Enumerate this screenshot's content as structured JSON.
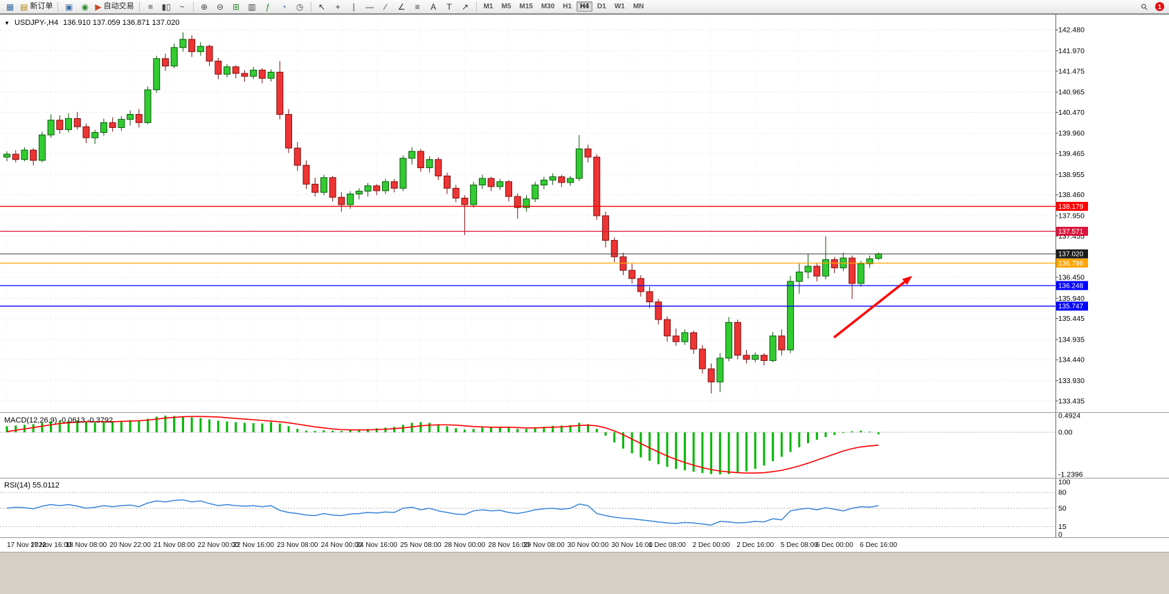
{
  "icons": {
    "collapse": "▼",
    "search": "⚲"
  },
  "toolbar": {
    "notification_count": "1",
    "items": [
      {
        "type": "icon",
        "name": "new-chart-icon",
        "glyph": "▦",
        "color": "#3b6ea5"
      },
      {
        "type": "button",
        "name": "new-order-button",
        "label": "新订单",
        "glyph": "▤",
        "color": "#b8860b"
      },
      {
        "type": "sep"
      },
      {
        "type": "icon",
        "name": "profiles-icon",
        "glyph": "▣",
        "color": "#3b6ea5"
      },
      {
        "type": "icon",
        "name": "alerts-icon",
        "glyph": "◉",
        "color": "#2e8b2e"
      },
      {
        "type": "button",
        "name": "autotrading-button",
        "label": "自动交易",
        "glyph": "▶",
        "color": "#cc4422"
      },
      {
        "type": "sep"
      },
      {
        "type": "icon",
        "name": "bar-chart-icon",
        "glyph": "≡",
        "color": "#444",
        "rot": true
      },
      {
        "type": "icon",
        "name": "candlestick-chart-icon",
        "glyph": "▮▯",
        "color": "#444"
      },
      {
        "type": "icon",
        "name": "line-chart-icon",
        "glyph": "~",
        "color": "#444"
      },
      {
        "type": "sep"
      },
      {
        "type": "icon",
        "name": "zoom-in-icon",
        "glyph": "⊕",
        "color": "#444"
      },
      {
        "type": "icon",
        "name": "zoom-out-icon",
        "glyph": "⊖",
        "color": "#444"
      },
      {
        "type": "icon",
        "name": "tile-windows-icon",
        "glyph": "⊞",
        "color": "#2e8b2e"
      },
      {
        "type": "icon",
        "name": "arrange-windows-icon",
        "glyph": "▥",
        "color": "#444"
      },
      {
        "type": "icon",
        "name": "indicators-icon",
        "glyph": "ƒ",
        "color": "#2e8b2e"
      },
      {
        "type": "icon",
        "name": "cycles-icon",
        "glyph": "◔",
        "color": "#3b6ea5"
      },
      {
        "type": "icon",
        "name": "clock-icon",
        "glyph": "◷",
        "color": "#444"
      },
      {
        "type": "sep"
      },
      {
        "type": "icon",
        "name": "cursor-icon",
        "glyph": "↖",
        "color": "#333"
      },
      {
        "type": "icon",
        "name": "crosshair-icon",
        "glyph": "+",
        "color": "#333"
      },
      {
        "type": "icon",
        "name": "vertical-line-icon",
        "glyph": "∣",
        "color": "#333"
      },
      {
        "type": "icon",
        "name": "horizontal-line-icon",
        "glyph": "―",
        "color": "#333"
      },
      {
        "type": "icon",
        "name": "trendline-icon",
        "glyph": "∕",
        "color": "#333"
      },
      {
        "type": "icon",
        "name": "channel-icon",
        "glyph": "∠",
        "color": "#333"
      },
      {
        "type": "icon",
        "name": "fibonacci-icon",
        "glyph": "≡",
        "color": "#333"
      },
      {
        "type": "icon",
        "name": "text-icon",
        "glyph": "A",
        "color": "#333"
      },
      {
        "type": "icon",
        "name": "label-icon",
        "glyph": "T",
        "color": "#333"
      },
      {
        "type": "icon",
        "name": "arrows-icon",
        "glyph": "↗",
        "color": "#333"
      },
      {
        "type": "sep"
      }
    ],
    "timeframes": [
      "M1",
      "M5",
      "M15",
      "M30",
      "H1",
      "H4",
      "D1",
      "W1",
      "MN"
    ],
    "active_timeframe": "H4"
  },
  "chart": {
    "title": "USDJPY-,H4",
    "ohlc_text": "136.910 137.059 136.871 137.020"
  },
  "indicators": {
    "macd_label": "MACD(12,26,9) -0.0613 -0.3792",
    "rsi_label": "RSI(14) 55.0112"
  },
  "chart_data": {
    "type": "candlestick",
    "symbol": "USDJPY-",
    "period": "H4",
    "ylim": [
      133.18,
      142.72
    ],
    "grid": true,
    "colors": {
      "up": "#32cc32",
      "up_edge": "#0a5c0a",
      "down": "#ee3434",
      "down_edge": "#801010",
      "macd_hist": "#00b800",
      "macd_signal": "#ff0000",
      "rsi_line": "#3a87d9",
      "bid": "#3a3a3a"
    },
    "price_ticks": [
      "142.480",
      "141.970",
      "141.475",
      "140.965",
      "140.470",
      "139.960",
      "139.465",
      "138.955",
      "138.460",
      "137.950",
      "137.455",
      "136.450",
      "135.940",
      "135.445",
      "134.935",
      "134.440",
      "133.930",
      "133.435"
    ],
    "hlines": [
      {
        "price": 138.179,
        "color": "#ff0000",
        "label": "138.179",
        "kind": "resistance"
      },
      {
        "price": 137.571,
        "color": "#dc143c",
        "label": "137.571",
        "kind": "resistance"
      },
      {
        "price": 137.02,
        "color": "#3a3a3a",
        "label": "137.020",
        "kind": "bid"
      },
      {
        "price": 136.796,
        "color": "#ffa500",
        "label": "136.796",
        "kind": "support"
      },
      {
        "price": 136.248,
        "color": "#0000ff",
        "label": "136.248",
        "kind": "support"
      },
      {
        "price": 135.747,
        "color": "#0000ff",
        "label": "135.747",
        "kind": "support"
      }
    ],
    "arrow": {
      "from": [
        1205,
        467
      ],
      "to": [
        1318,
        378
      ],
      "color": "#ff0000"
    },
    "time_labels": [
      "17 Nov 2022",
      "17 Nov 16:00",
      "18 Nov 08:00",
      "20 Nov 22:00",
      "21 Nov 08:00",
      "22 Nov 00:00",
      "22 Nov 16:00",
      "23 Nov 08:00",
      "24 Nov 00:00",
      "24 Nov 16:00",
      "25 Nov 08:00",
      "28 Nov 00:00",
      "28 Nov 16:00",
      "29 Nov 08:00",
      "30 Nov 00:00",
      "30 Nov 16:00",
      "1 Dec 08:00",
      "2 Dec 00:00",
      "2 Dec 16:00",
      "5 Dec 08:00",
      "6 Dec 00:00",
      "6 Dec 16:00"
    ],
    "candles": [
      [
        139.38,
        139.52,
        139.28,
        139.45
      ],
      [
        139.45,
        139.55,
        139.25,
        139.32
      ],
      [
        139.32,
        139.62,
        139.28,
        139.55
      ],
      [
        139.55,
        139.6,
        139.18,
        139.3
      ],
      [
        139.3,
        140.0,
        139.25,
        139.92
      ],
      [
        139.92,
        140.42,
        139.85,
        140.28
      ],
      [
        140.28,
        140.4,
        139.95,
        140.05
      ],
      [
        140.05,
        140.45,
        139.98,
        140.32
      ],
      [
        140.32,
        140.48,
        140.05,
        140.12
      ],
      [
        140.12,
        140.2,
        139.72,
        139.85
      ],
      [
        139.85,
        140.05,
        139.7,
        139.98
      ],
      [
        139.98,
        140.32,
        139.9,
        140.22
      ],
      [
        140.22,
        140.35,
        140.0,
        140.1
      ],
      [
        140.1,
        140.38,
        140.02,
        140.3
      ],
      [
        140.3,
        140.52,
        140.15,
        140.42
      ],
      [
        140.42,
        140.55,
        140.1,
        140.22
      ],
      [
        140.22,
        141.1,
        140.18,
        141.02
      ],
      [
        141.02,
        141.85,
        140.95,
        141.78
      ],
      [
        141.78,
        141.9,
        141.48,
        141.6
      ],
      [
        141.6,
        142.15,
        141.55,
        142.05
      ],
      [
        142.05,
        142.42,
        141.95,
        142.25
      ],
      [
        142.25,
        142.35,
        141.82,
        141.95
      ],
      [
        141.95,
        142.18,
        141.85,
        142.08
      ],
      [
        142.08,
        142.12,
        141.6,
        141.72
      ],
      [
        141.72,
        141.8,
        141.28,
        141.4
      ],
      [
        141.4,
        141.65,
        141.32,
        141.58
      ],
      [
        141.58,
        141.62,
        141.3,
        141.42
      ],
      [
        141.42,
        141.5,
        141.22,
        141.35
      ],
      [
        141.35,
        141.58,
        141.28,
        141.5
      ],
      [
        141.5,
        141.55,
        141.18,
        141.3
      ],
      [
        141.3,
        141.52,
        141.22,
        141.45
      ],
      [
        141.45,
        141.72,
        140.3,
        140.42
      ],
      [
        140.42,
        140.55,
        139.48,
        139.6
      ],
      [
        139.6,
        139.75,
        139.05,
        139.18
      ],
      [
        139.18,
        139.3,
        138.6,
        138.72
      ],
      [
        138.72,
        138.88,
        138.42,
        138.52
      ],
      [
        138.52,
        138.95,
        138.45,
        138.88
      ],
      [
        138.88,
        138.92,
        138.3,
        138.4
      ],
      [
        138.4,
        138.52,
        138.05,
        138.22
      ],
      [
        138.22,
        138.55,
        138.12,
        138.48
      ],
      [
        138.48,
        138.62,
        138.35,
        138.55
      ],
      [
        138.55,
        138.75,
        138.42,
        138.68
      ],
      [
        138.68,
        138.72,
        138.45,
        138.56
      ],
      [
        138.56,
        138.85,
        138.48,
        138.78
      ],
      [
        138.78,
        138.85,
        138.52,
        138.62
      ],
      [
        138.62,
        139.42,
        138.55,
        139.35
      ],
      [
        139.35,
        139.62,
        139.2,
        139.52
      ],
      [
        139.52,
        139.58,
        139.02,
        139.12
      ],
      [
        139.12,
        139.4,
        139.0,
        139.32
      ],
      [
        139.32,
        139.38,
        138.82,
        138.92
      ],
      [
        138.92,
        139.0,
        138.48,
        138.62
      ],
      [
        138.62,
        138.7,
        138.28,
        138.38
      ],
      [
        138.38,
        138.45,
        137.48,
        138.22
      ],
      [
        138.22,
        138.78,
        138.15,
        138.7
      ],
      [
        138.7,
        138.95,
        138.6,
        138.86
      ],
      [
        138.86,
        138.9,
        138.55,
        138.66
      ],
      [
        138.66,
        138.85,
        138.58,
        138.78
      ],
      [
        138.78,
        138.82,
        138.3,
        138.42
      ],
      [
        138.42,
        138.5,
        137.88,
        138.15
      ],
      [
        138.15,
        138.45,
        138.05,
        138.36
      ],
      [
        138.36,
        138.78,
        138.28,
        138.7
      ],
      [
        138.7,
        138.9,
        138.6,
        138.82
      ],
      [
        138.82,
        138.98,
        138.7,
        138.9
      ],
      [
        138.9,
        138.95,
        138.65,
        138.76
      ],
      [
        138.76,
        138.92,
        138.68,
        138.86
      ],
      [
        138.86,
        139.92,
        138.8,
        139.58
      ],
      [
        139.58,
        139.68,
        139.25,
        139.38
      ],
      [
        139.38,
        139.45,
        137.85,
        137.95
      ],
      [
        137.95,
        138.05,
        137.18,
        137.35
      ],
      [
        137.35,
        137.42,
        136.82,
        136.95
      ],
      [
        136.95,
        137.05,
        136.5,
        136.62
      ],
      [
        136.62,
        136.78,
        136.3,
        136.42
      ],
      [
        136.42,
        136.5,
        135.98,
        136.1
      ],
      [
        136.1,
        136.22,
        135.7,
        135.85
      ],
      [
        135.85,
        135.92,
        135.3,
        135.42
      ],
      [
        135.42,
        135.5,
        134.88,
        135.02
      ],
      [
        135.02,
        135.2,
        134.78,
        134.88
      ],
      [
        134.88,
        135.18,
        134.8,
        135.1
      ],
      [
        135.1,
        135.15,
        134.58,
        134.7
      ],
      [
        134.7,
        134.8,
        134.1,
        134.22
      ],
      [
        134.22,
        134.35,
        133.62,
        133.9
      ],
      [
        133.9,
        134.6,
        133.65,
        134.48
      ],
      [
        134.48,
        135.48,
        134.4,
        135.35
      ],
      [
        135.35,
        135.42,
        134.45,
        134.55
      ],
      [
        134.55,
        134.68,
        134.35,
        134.45
      ],
      [
        134.45,
        134.62,
        134.38,
        134.55
      ],
      [
        134.55,
        134.6,
        134.3,
        134.42
      ],
      [
        134.42,
        135.12,
        134.38,
        135.02
      ],
      [
        135.02,
        135.18,
        134.55,
        134.68
      ],
      [
        134.68,
        136.48,
        134.6,
        136.35
      ],
      [
        136.35,
        136.78,
        136.05,
        136.58
      ],
      [
        136.58,
        137.02,
        136.42,
        136.72
      ],
      [
        136.72,
        136.8,
        136.35,
        136.48
      ],
      [
        136.48,
        137.45,
        136.4,
        136.88
      ],
      [
        136.88,
        136.95,
        136.55,
        136.68
      ],
      [
        136.68,
        137.05,
        136.6,
        136.92
      ],
      [
        136.92,
        136.98,
        135.92,
        136.3
      ],
      [
        136.3,
        136.85,
        136.22,
        136.78
      ],
      [
        136.78,
        136.98,
        136.68,
        136.9
      ],
      [
        136.91,
        137.059,
        136.871,
        137.02
      ]
    ],
    "macd": {
      "params": "12,26,9",
      "main_value": -0.0613,
      "signal_value": -0.3792,
      "ylim": [
        -1.2396,
        0.4924
      ],
      "ticks": [
        {
          "v": 0.4924,
          "label": "0.4924"
        },
        {
          "v": 0,
          "label": "0.00"
        },
        {
          "v": -1.2396,
          "label": "-1.2396"
        }
      ],
      "histogram": [
        0.18,
        0.2,
        0.22,
        0.24,
        0.28,
        0.32,
        0.34,
        0.33,
        0.35,
        0.3,
        0.28,
        0.3,
        0.32,
        0.34,
        0.36,
        0.35,
        0.4,
        0.46,
        0.49,
        0.48,
        0.47,
        0.44,
        0.42,
        0.38,
        0.34,
        0.32,
        0.3,
        0.28,
        0.27,
        0.26,
        0.3,
        0.26,
        0.18,
        0.1,
        0.05,
        0.04,
        0.06,
        0.05,
        0.04,
        0.06,
        0.08,
        0.1,
        0.12,
        0.14,
        0.16,
        0.22,
        0.28,
        0.3,
        0.28,
        0.24,
        0.18,
        0.12,
        0.08,
        0.1,
        0.14,
        0.15,
        0.16,
        0.14,
        0.1,
        0.1,
        0.13,
        0.16,
        0.19,
        0.2,
        0.21,
        0.28,
        0.24,
        0.1,
        -0.1,
        -0.3,
        -0.48,
        -0.62,
        -0.74,
        -0.84,
        -0.94,
        -1.02,
        -1.08,
        -1.12,
        -1.16,
        -1.2,
        -1.23,
        -1.24,
        -1.23,
        -1.2,
        -1.15,
        -1.08,
        -0.98,
        -0.85,
        -0.72,
        -0.58,
        -0.44,
        -0.32,
        -0.22,
        -0.14,
        -0.08,
        -0.02,
        0.03,
        0.05,
        0.02,
        -0.06
      ],
      "signal": [
        0.02,
        0.06,
        0.1,
        0.14,
        0.18,
        0.22,
        0.26,
        0.28,
        0.3,
        0.31,
        0.31,
        0.31,
        0.31,
        0.32,
        0.33,
        0.34,
        0.36,
        0.39,
        0.42,
        0.44,
        0.46,
        0.465,
        0.465,
        0.46,
        0.45,
        0.43,
        0.41,
        0.39,
        0.37,
        0.35,
        0.33,
        0.31,
        0.28,
        0.24,
        0.2,
        0.16,
        0.13,
        0.1,
        0.08,
        0.07,
        0.07,
        0.07,
        0.08,
        0.09,
        0.11,
        0.13,
        0.16,
        0.19,
        0.21,
        0.22,
        0.22,
        0.21,
        0.19,
        0.17,
        0.16,
        0.15,
        0.15,
        0.15,
        0.14,
        0.13,
        0.13,
        0.14,
        0.15,
        0.16,
        0.18,
        0.2,
        0.21,
        0.19,
        0.13,
        0.04,
        -0.07,
        -0.2,
        -0.33,
        -0.46,
        -0.58,
        -0.7,
        -0.8,
        -0.89,
        -0.97,
        -1.04,
        -1.1,
        -1.14,
        -1.17,
        -1.19,
        -1.2,
        -1.2,
        -1.19,
        -1.16,
        -1.12,
        -1.06,
        -0.99,
        -0.91,
        -0.82,
        -0.73,
        -0.64,
        -0.55,
        -0.48,
        -0.43,
        -0.4,
        -0.38
      ]
    },
    "rsi": {
      "period": 14,
      "value": 55.0112,
      "ylim": [
        0,
        100
      ],
      "ticks": [
        {
          "v": 100,
          "label": "100"
        },
        {
          "v": 80,
          "label": "80"
        },
        {
          "v": 50,
          "label": "50"
        },
        {
          "v": 15,
          "label": "15"
        },
        {
          "v": 0,
          "label": "0"
        }
      ],
      "levels": [
        80,
        50,
        15
      ],
      "values": [
        50,
        52,
        51,
        49,
        54,
        57,
        55,
        57,
        54,
        50,
        52,
        55,
        53,
        55,
        56,
        53,
        60,
        64,
        62,
        65,
        66,
        62,
        64,
        59,
        55,
        57,
        55,
        54,
        55,
        53,
        55,
        46,
        42,
        40,
        37,
        36,
        40,
        37,
        36,
        39,
        40,
        42,
        41,
        43,
        42,
        50,
        52,
        47,
        50,
        45,
        42,
        39,
        38,
        45,
        47,
        45,
        46,
        42,
        40,
        43,
        47,
        49,
        50,
        48,
        50,
        58,
        55,
        40,
        36,
        33,
        31,
        30,
        28,
        26,
        24,
        22,
        21,
        23,
        22,
        20,
        18,
        25,
        24,
        22,
        23,
        25,
        24,
        30,
        28,
        45,
        48,
        50,
        47,
        51,
        48,
        45,
        50,
        53,
        52,
        55
      ]
    }
  }
}
